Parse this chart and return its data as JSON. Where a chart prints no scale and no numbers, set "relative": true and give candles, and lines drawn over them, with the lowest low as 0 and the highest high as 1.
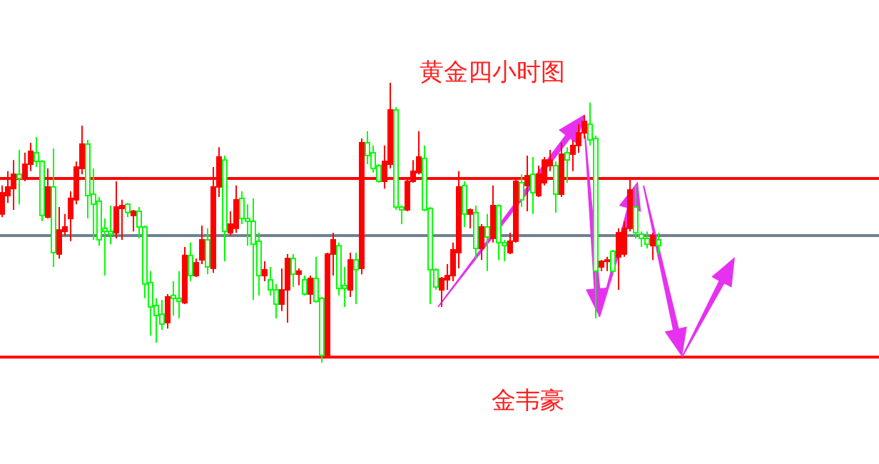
{
  "chart_data": {
    "type": "candlestick",
    "relative": true,
    "title": "黄金四小时图",
    "annotations": [
      "金韦豪"
    ],
    "categories": [
      null,
      null,
      null,
      null,
      null,
      null,
      null,
      null,
      null,
      null,
      null,
      null,
      null,
      null,
      null,
      null,
      null,
      null,
      null,
      null,
      null,
      null,
      null,
      null,
      null,
      null,
      null,
      null,
      null,
      null,
      null,
      null,
      null,
      null,
      null,
      null,
      null,
      null,
      null,
      null,
      null,
      null,
      null,
      null,
      null,
      null,
      null,
      null,
      null,
      null,
      null,
      null,
      null,
      null,
      null,
      null,
      null,
      null,
      null,
      null,
      null,
      null,
      null,
      null,
      null,
      null,
      null,
      null,
      null,
      null,
      null,
      null,
      null,
      null,
      null,
      null,
      null,
      null,
      null,
      null,
      null,
      null,
      null,
      null,
      null,
      null,
      null,
      null,
      null,
      null,
      null,
      null,
      null,
      null,
      null,
      null,
      null,
      null,
      null,
      null,
      null,
      null,
      null,
      null,
      null,
      null,
      null,
      null,
      null,
      null,
      null,
      null,
      null,
      null,
      null,
      null
    ],
    "ohlc": [
      [
        0.531,
        0.633,
        0.52,
        0.607
      ],
      [
        0.597,
        0.684,
        0.571,
        0.628
      ],
      [
        0.622,
        0.724,
        0.546,
        0.673
      ],
      [
        0.673,
        0.76,
        0.566,
        0.658
      ],
      [
        0.658,
        0.75,
        0.648,
        0.709
      ],
      [
        0.709,
        0.786,
        0.684,
        0.755
      ],
      [
        0.75,
        0.806,
        0.699,
        0.719
      ],
      [
        0.719,
        0.724,
        0.505,
        0.526
      ],
      [
        0.52,
        0.694,
        0.515,
        0.628
      ],
      [
        0.628,
        0.765,
        0.342,
        0.393
      ],
      [
        0.388,
        0.556,
        0.372,
        0.474
      ],
      [
        0.469,
        0.531,
        0.454,
        0.485
      ],
      [
        0.515,
        0.612,
        0.434,
        0.587
      ],
      [
        0.582,
        0.719,
        0.566,
        0.699
      ],
      [
        0.694,
        0.847,
        0.673,
        0.781
      ],
      [
        0.781,
        0.796,
        0.515,
        0.597
      ],
      [
        0.602,
        0.694,
        0.439,
        0.566
      ],
      [
        0.577,
        0.592,
        0.418,
        0.439
      ],
      [
        0.48,
        0.515,
        0.311,
        0.469
      ],
      [
        0.469,
        0.561,
        0.423,
        0.459
      ],
      [
        0.464,
        0.648,
        0.444,
        0.556
      ],
      [
        0.551,
        0.582,
        0.439,
        0.561
      ],
      [
        0.566,
        0.571,
        0.52,
        0.536
      ],
      [
        0.526,
        0.546,
        0.469,
        0.541
      ],
      [
        0.541,
        0.556,
        0.444,
        0.485
      ],
      [
        0.485,
        0.49,
        0.23,
        0.281
      ],
      [
        0.286,
        0.327,
        0.097,
        0.199
      ],
      [
        0.204,
        0.23,
        0.071,
        0.168
      ],
      [
        0.173,
        0.224,
        0.117,
        0.138
      ],
      [
        0.143,
        0.245,
        0.122,
        0.235
      ],
      [
        0.24,
        0.291,
        0.168,
        0.23
      ],
      [
        0.23,
        0.327,
        0.158,
        0.219
      ],
      [
        0.214,
        0.413,
        0.209,
        0.383
      ],
      [
        0.383,
        0.429,
        0.291,
        0.311
      ],
      [
        0.311,
        0.372,
        0.306,
        0.357
      ],
      [
        0.367,
        0.49,
        0.352,
        0.439
      ],
      [
        0.439,
        0.48,
        0.316,
        0.342
      ],
      [
        0.337,
        0.699,
        0.321,
        0.628
      ],
      [
        0.628,
        0.77,
        0.592,
        0.735
      ],
      [
        0.724,
        0.74,
        0.362,
        0.469
      ],
      [
        0.464,
        0.541,
        0.454,
        0.495
      ],
      [
        0.48,
        0.633,
        0.464,
        0.582
      ],
      [
        0.587,
        0.612,
        0.495,
        0.515
      ],
      [
        0.515,
        0.566,
        0.418,
        0.505
      ],
      [
        0.505,
        0.587,
        0.224,
        0.423
      ],
      [
        0.434,
        0.464,
        0.24,
        0.311
      ],
      [
        0.311,
        0.362,
        0.291,
        0.332
      ],
      [
        0.296,
        0.342,
        0.24,
        0.26
      ],
      [
        0.26,
        0.281,
        0.158,
        0.209
      ],
      [
        0.209,
        0.337,
        0.184,
        0.26
      ],
      [
        0.26,
        0.388,
        0.143,
        0.372
      ],
      [
        0.372,
        0.388,
        0.27,
        0.316
      ],
      [
        0.316,
        0.337,
        0.276,
        0.327
      ],
      [
        0.296,
        0.311,
        0.24,
        0.245
      ],
      [
        0.245,
        0.311,
        0.209,
        0.301
      ],
      [
        0.301,
        0.378,
        0.214,
        0.219
      ],
      [
        0.23,
        0.235,
        0,
        0.026
      ],
      [
        0.026,
        0.393,
        0.015,
        0.388
      ],
      [
        0.388,
        0.464,
        0.311,
        0.439
      ],
      [
        0.418,
        0.429,
        0.24,
        0.265
      ],
      [
        0.276,
        0.342,
        0.199,
        0.265
      ],
      [
        0.26,
        0.393,
        0.235,
        0.367
      ],
      [
        0.367,
        0.393,
        0.209,
        0.332
      ],
      [
        0.337,
        0.801,
        0.316,
        0.786
      ],
      [
        0.786,
        0.827,
        0.709,
        0.74
      ],
      [
        0.75,
        0.776,
        0.679,
        0.694
      ],
      [
        0.704,
        0.709,
        0.643,
        0.648
      ],
      [
        0.648,
        0.776,
        0.622,
        0.719
      ],
      [
        0.709,
        1,
        0.694,
        0.903
      ],
      [
        0.903,
        0.913,
        0.546,
        0.556
      ],
      [
        0.556,
        0.561,
        0.495,
        0.546
      ],
      [
        0.546,
        0.658,
        0.541,
        0.648
      ],
      [
        0.648,
        0.724,
        0.643,
        0.684
      ],
      [
        0.679,
        0.827,
        0.673,
        0.735
      ],
      [
        0.73,
        0.776,
        0.541,
        0.546
      ],
      [
        0.551,
        0.556,
        0.209,
        0.332
      ],
      [
        0.332,
        0.337,
        0.26,
        0.27
      ],
      [
        0.26,
        0.306,
        0.199,
        0.301
      ],
      [
        0.296,
        0.352,
        0.26,
        0.311
      ],
      [
        0.311,
        0.429,
        0.291,
        0.403
      ],
      [
        0.393,
        0.684,
        0.337,
        0.628
      ],
      [
        0.633,
        0.648,
        0.485,
        0.531
      ],
      [
        0.531,
        0.551,
        0.48,
        0.546
      ],
      [
        0.536,
        0.561,
        0.372,
        0.408
      ],
      [
        0.408,
        0.495,
        0.367,
        0.485
      ],
      [
        0.485,
        0.531,
        0.327,
        0.449
      ],
      [
        0.444,
        0.633,
        0.429,
        0.561
      ],
      [
        0.561,
        0.566,
        0.367,
        0.429
      ],
      [
        0.429,
        0.439,
        0.362,
        0.418
      ],
      [
        0.393,
        0.464,
        0.388,
        0.434
      ],
      [
        0.434,
        0.658,
        0.429,
        0.648
      ],
      [
        0.643,
        0.673,
        0.556,
        0.582
      ],
      [
        0.633,
        0.74,
        0.541,
        0.668
      ],
      [
        0.673,
        0.735,
        0.531,
        0.607
      ],
      [
        0.597,
        0.704,
        0.592,
        0.673
      ],
      [
        0.643,
        0.735,
        0.633,
        0.724
      ],
      [
        0.704,
        0.76,
        0.684,
        0.724
      ],
      [
        0.704,
        0.719,
        0.536,
        0.602
      ],
      [
        0.602,
        0.786,
        0.592,
        0.745
      ],
      [
        0.75,
        0.77,
        0.643,
        0.724
      ],
      [
        0.745,
        0.796,
        0.684,
        0.776
      ],
      [
        0.776,
        0.852,
        0.75,
        0.821
      ],
      [
        0.821,
        0.883,
        0.801,
        0.862
      ],
      [
        0.852,
        0.929,
        0.776,
        0.796
      ],
      [
        0.801,
        0.811,
        0.158,
        0.327
      ],
      [
        0.342,
        0.367,
        0.327,
        0.362
      ],
      [
        0.362,
        0.378,
        0.327,
        0.367
      ],
      [
        0.398,
        0.403,
        0.321,
        0.327
      ],
      [
        0.378,
        0.48,
        0.26,
        0.464
      ],
      [
        0.388,
        0.505,
        0.378,
        0.48
      ],
      [
        0.48,
        0.653,
        0.469,
        0.617
      ],
      [
        0.556,
        0.633,
        0.444,
        0.464
      ],
      [
        0.459,
        0.469,
        0.413,
        0.444
      ],
      [
        0.444,
        0.469,
        0.408,
        0.423
      ],
      [
        0.418,
        0.464,
        0.367,
        0.454
      ],
      [
        0.439,
        0.464,
        0.388,
        0.418
      ]
    ],
    "colors": [
      "#ff0000",
      "#ff0000",
      "#ff0000",
      "#00ff00",
      "#ff0000",
      "#ff0000",
      "#00ff00",
      "#00ff00",
      "#ff0000",
      "#00ff00",
      "#ff0000",
      "#ff0000",
      "#ff0000",
      "#ff0000",
      "#ff0000",
      "#00ff00",
      "#00ff00",
      "#00ff00",
      "#00ff00",
      "#00ff00",
      "#ff0000",
      "#ff0000",
      "#00ff00",
      "#ff0000",
      "#00ff00",
      "#00ff00",
      "#00ff00",
      "#00ff00",
      "#00ff00",
      "#ff0000",
      "#00ff00",
      "#00ff00",
      "#ff0000",
      "#00ff00",
      "#ff0000",
      "#ff0000",
      "#00ff00",
      "#ff0000",
      "#ff0000",
      "#00ff00",
      "#ff0000",
      "#ff0000",
      "#00ff00",
      "#00ff00",
      "#00ff00",
      "#00ff00",
      "#ff0000",
      "#00ff00",
      "#00ff00",
      "#ff0000",
      "#ff0000",
      "#00ff00",
      "#ff0000",
      "#00ff00",
      "#ff0000",
      "#00ff00",
      "#00ff00",
      "#ff0000",
      "#ff0000",
      "#00ff00",
      "#00ff00",
      "#ff0000",
      "#00ff00",
      "#ff0000",
      "#00ff00",
      "#00ff00",
      "#00ff00",
      "#ff0000",
      "#ff0000",
      "#00ff00",
      "#00ff00",
      "#ff0000",
      "#ff0000",
      "#ff0000",
      "#00ff00",
      "#00ff00",
      "#00ff00",
      "#ff0000",
      "#ff0000",
      "#ff0000",
      "#ff0000",
      "#00ff00",
      "#ff0000",
      "#00ff00",
      "#ff0000",
      "#00ff00",
      "#ff0000",
      "#00ff00",
      "#00ff00",
      "#ff0000",
      "#ff0000",
      "#00ff00",
      "#ff0000",
      "#00ff00",
      "#ff0000",
      "#ff0000",
      "#ff0000",
      "#00ff00",
      "#ff0000",
      "#00ff00",
      "#ff0000",
      "#ff0000",
      "#ff0000",
      "#00ff00",
      "#00ff00",
      "#ff0000",
      "#ff0000",
      "#00ff00",
      "#ff0000",
      "#ff0000",
      "#ff0000",
      "#00ff00",
      "#00ff00",
      "#00ff00",
      "#ff0000",
      "#00ff00"
    ],
    "ref_lines": [
      {
        "axis": "y",
        "value": 0.658,
        "color": "#ff0000"
      },
      {
        "axis": "y",
        "value": 0.454,
        "color": "#708090"
      },
      {
        "axis": "y",
        "value": 0.02,
        "color": "#ff0000"
      }
    ]
  }
}
